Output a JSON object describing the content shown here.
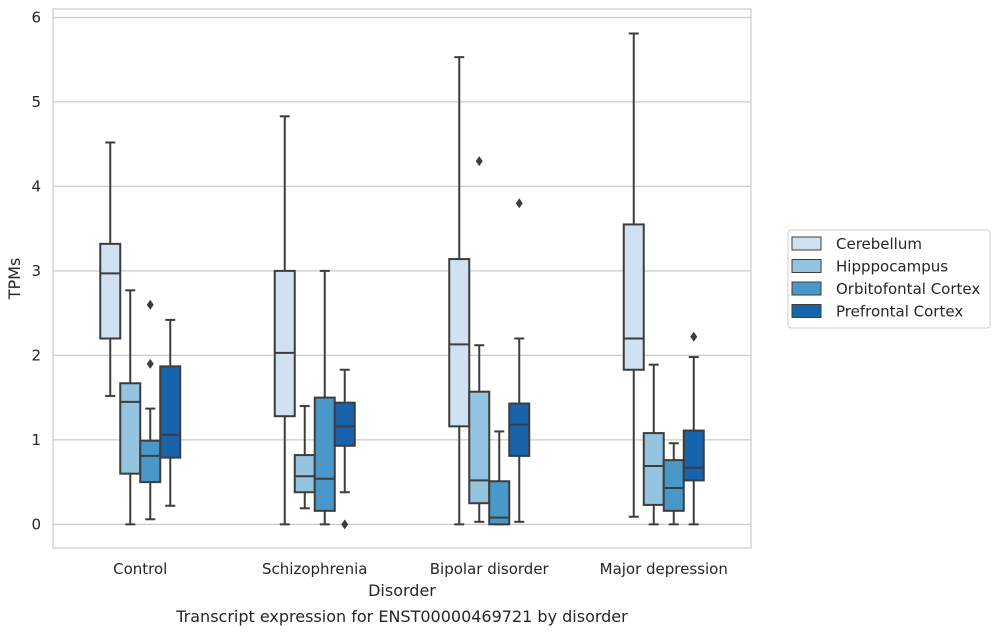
{
  "caption": "Transcript expression for ENST00000469721 by disorder",
  "chart_data": {
    "type": "boxplot",
    "xlabel": "Disorder",
    "ylabel": "TPMs",
    "ylim": [
      -0.28,
      6.1
    ],
    "yticks": [
      0,
      1,
      2,
      3,
      4,
      5,
      6
    ],
    "grid": true,
    "legend_placement": "right",
    "categories": [
      "Control",
      "Schizophrenia",
      "Bipolar disorder",
      "Major depression"
    ],
    "series": [
      {
        "name": "Cerebellum",
        "color": "#d0e1f2",
        "boxes": [
          {
            "whisker_low": 1.52,
            "q1": 2.2,
            "median": 2.97,
            "q3": 3.32,
            "whisker_high": 4.52,
            "outliers": []
          },
          {
            "whisker_low": 0.0,
            "q1": 1.28,
            "median": 2.03,
            "q3": 3.0,
            "whisker_high": 4.83,
            "outliers": []
          },
          {
            "whisker_low": 0.0,
            "q1": 1.16,
            "median": 2.13,
            "q3": 3.14,
            "whisker_high": 5.53,
            "outliers": []
          },
          {
            "whisker_low": 0.09,
            "q1": 1.83,
            "median": 2.2,
            "q3": 3.55,
            "whisker_high": 5.81,
            "outliers": []
          }
        ]
      },
      {
        "name": "Hipppocampus",
        "color": "#94c4df",
        "boxes": [
          {
            "whisker_low": 0.0,
            "q1": 0.6,
            "median": 1.45,
            "q3": 1.67,
            "whisker_high": 2.77,
            "outliers": []
          },
          {
            "whisker_low": 0.19,
            "q1": 0.38,
            "median": 0.57,
            "q3": 0.82,
            "whisker_high": 1.4,
            "outliers": []
          },
          {
            "whisker_low": 0.03,
            "q1": 0.25,
            "median": 0.52,
            "q3": 1.57,
            "whisker_high": 2.12,
            "outliers": [
              4.3
            ]
          },
          {
            "whisker_low": 0.0,
            "q1": 0.23,
            "median": 0.69,
            "q3": 1.08,
            "whisker_high": 1.89,
            "outliers": []
          }
        ]
      },
      {
        "name": "Orbitofontal Cortex",
        "color": "#4a98c9",
        "boxes": [
          {
            "whisker_low": 0.06,
            "q1": 0.5,
            "median": 0.81,
            "q3": 0.99,
            "whisker_high": 1.37,
            "outliers": [
              1.9,
              2.6
            ]
          },
          {
            "whisker_low": 0.0,
            "q1": 0.16,
            "median": 0.54,
            "q3": 1.5,
            "whisker_high": 3.0,
            "outliers": []
          },
          {
            "whisker_low": 0.0,
            "q1": 0.0,
            "median": 0.08,
            "q3": 0.51,
            "whisker_high": 1.1,
            "outliers": []
          },
          {
            "whisker_low": 0.0,
            "q1": 0.16,
            "median": 0.43,
            "q3": 0.76,
            "whisker_high": 0.96,
            "outliers": []
          }
        ]
      },
      {
        "name": "Prefrontal Cortex",
        "color": "#1764ab",
        "boxes": [
          {
            "whisker_low": 0.22,
            "q1": 0.79,
            "median": 1.06,
            "q3": 1.87,
            "whisker_high": 2.42,
            "outliers": []
          },
          {
            "whisker_low": 0.38,
            "q1": 0.93,
            "median": 1.16,
            "q3": 1.44,
            "whisker_high": 1.83,
            "outliers": [
              0.0
            ]
          },
          {
            "whisker_low": 0.03,
            "q1": 0.81,
            "median": 1.18,
            "q3": 1.43,
            "whisker_high": 2.2,
            "outliers": [
              3.8
            ]
          },
          {
            "whisker_low": 0.0,
            "q1": 0.52,
            "median": 0.67,
            "q3": 1.11,
            "whisker_high": 1.98,
            "outliers": [
              2.22
            ]
          }
        ]
      }
    ]
  }
}
